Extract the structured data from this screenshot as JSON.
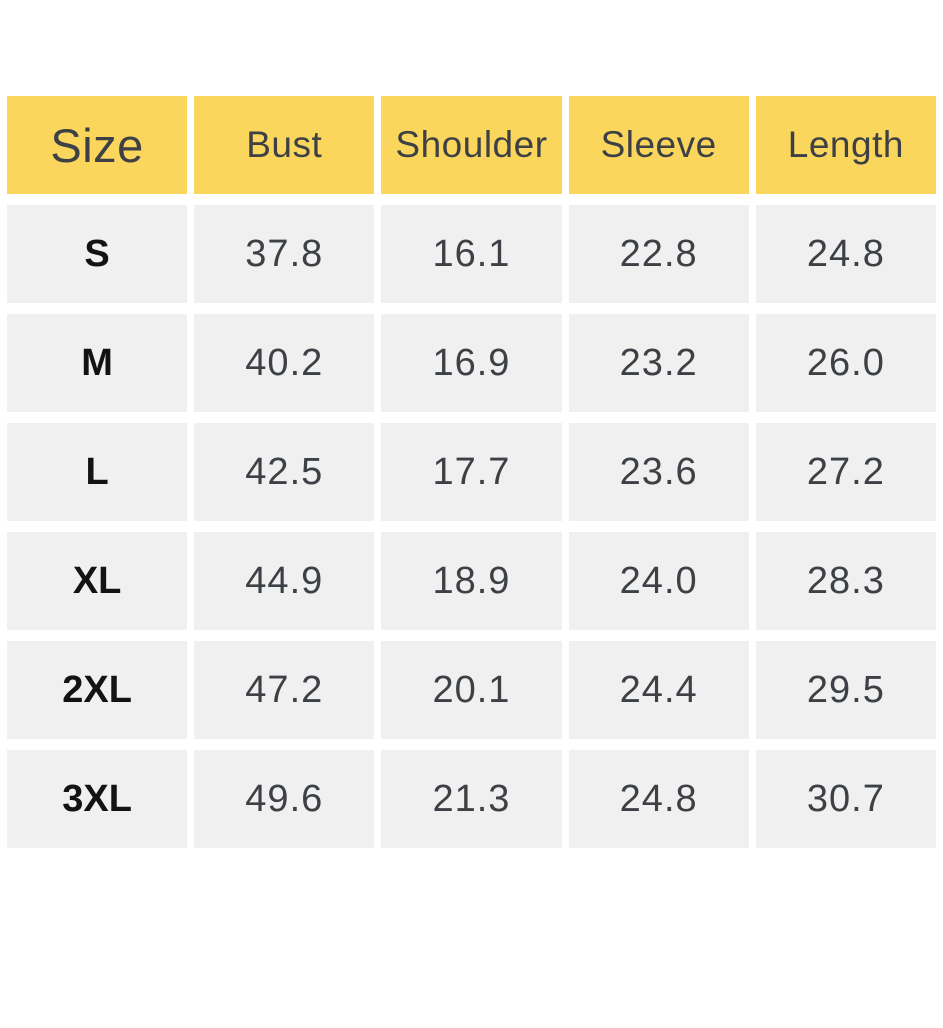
{
  "colors": {
    "header_background": "#FBD65D",
    "row_background": "#F0F0F0",
    "header_text": "#3D4045",
    "value_text": "#3D4045",
    "size_label_text": "#131313",
    "page_background": "#FFFFFF"
  },
  "table": {
    "columns": [
      "Size",
      "Bust",
      "Shoulder",
      "Sleeve",
      "Length"
    ],
    "rows": [
      {
        "size": "S",
        "values": [
          "37.8",
          "16.1",
          "22.8",
          "24.8"
        ]
      },
      {
        "size": "M",
        "values": [
          "40.2",
          "16.9",
          "23.2",
          "26.0"
        ]
      },
      {
        "size": "L",
        "values": [
          "42.5",
          "17.7",
          "23.6",
          "27.2"
        ]
      },
      {
        "size": "XL",
        "values": [
          "44.9",
          "18.9",
          "24.0",
          "28.3"
        ]
      },
      {
        "size": "2XL",
        "values": [
          "47.2",
          "20.1",
          "24.4",
          "29.5"
        ]
      },
      {
        "size": "3XL",
        "values": [
          "49.6",
          "21.3",
          "24.8",
          "30.7"
        ]
      }
    ]
  },
  "chart_data": {
    "type": "table",
    "columns": [
      "Size",
      "Bust",
      "Shoulder",
      "Sleeve",
      "Length"
    ],
    "rows": [
      [
        "S",
        37.8,
        16.1,
        22.8,
        24.8
      ],
      [
        "M",
        40.2,
        16.9,
        23.2,
        26.0
      ],
      [
        "L",
        42.5,
        17.7,
        23.6,
        27.2
      ],
      [
        "XL",
        44.9,
        18.9,
        24.0,
        28.3
      ],
      [
        "2XL",
        47.2,
        20.1,
        24.4,
        29.5
      ],
      [
        "3XL",
        49.6,
        21.3,
        24.8,
        30.7
      ]
    ],
    "layout": {
      "header_fill": "#FBD65D",
      "row_fill": "#F0F0F0",
      "grid": "white gutters between cells"
    }
  }
}
